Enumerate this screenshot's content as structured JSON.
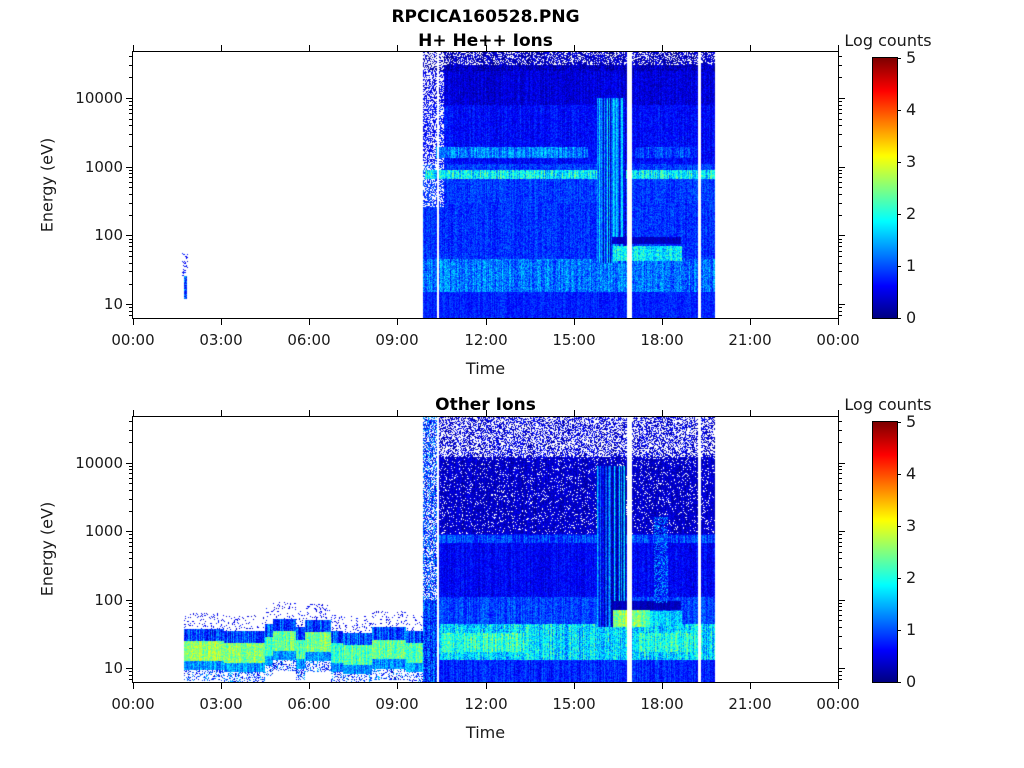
{
  "figure": {
    "title": "RPCICA160528.PNG"
  },
  "chart_data": [
    {
      "type": "heatmap",
      "title": "H+ He++ Ions",
      "xlabel": "Time",
      "ylabel": "Energy (eV)",
      "x_range_hours": [
        0,
        24
      ],
      "x_major_ticks_hours": [
        0,
        3,
        6,
        9,
        12,
        15,
        18,
        21,
        24
      ],
      "x_tick_labels": [
        "00:00",
        "03:00",
        "06:00",
        "09:00",
        "12:00",
        "15:00",
        "18:00",
        "21:00",
        "00:00"
      ],
      "y_scale": "log",
      "y_range_ev": [
        6.3,
        46500
      ],
      "y_major_ticks_ev": [
        10,
        100,
        1000,
        10000
      ],
      "y_tick_labels": [
        "10",
        "100",
        "1000",
        "10000"
      ],
      "grid": false,
      "colorbar": {
        "label": "Log counts",
        "range": [
          0,
          5
        ],
        "ticks": [
          0,
          1,
          2,
          3,
          4,
          5
        ],
        "colormap": "jet"
      },
      "features": [
        {
          "name": "early-ion-trace",
          "mode": "fill",
          "t": [
            1.72,
            1.83
          ],
          "e": [
            12,
            26
          ],
          "v": 1.1,
          "jitter": 0.6,
          "colAmp": 0.3
        },
        {
          "name": "early-ion-trace-halo",
          "mode": "speckle",
          "p": 0.25,
          "t": [
            1.68,
            1.87
          ],
          "e": [
            26,
            55
          ],
          "v": 0.6,
          "jitter": 0.3
        },
        {
          "name": "block-bottom",
          "mode": "fill",
          "t": [
            9.87,
            19.81
          ],
          "e": [
            6.3,
            15
          ],
          "v": 0.78,
          "jitter": 0.22,
          "colAmp": 0.12
        },
        {
          "name": "block-low-band",
          "mode": "fill",
          "t": [
            9.87,
            19.81
          ],
          "e": [
            15,
            45
          ],
          "v": 1.2,
          "jitter": 0.4,
          "colAmp": 0.3
        },
        {
          "name": "block-mid-low",
          "mode": "fill",
          "t": [
            9.87,
            19.81
          ],
          "e": [
            45,
            300
          ],
          "v": 0.85,
          "jitter": 0.28,
          "colAmp": 0.15
        },
        {
          "name": "block-mid",
          "mode": "fill",
          "t": [
            9.87,
            19.81
          ],
          "e": [
            300,
            1100
          ],
          "v": 0.9,
          "jitter": 0.28,
          "colAmp": 0.15
        },
        {
          "name": "block-upper-mid",
          "mode": "fill",
          "t": [
            9.87,
            19.81
          ],
          "e": [
            1100,
            8000
          ],
          "v": 0.65,
          "jitter": 0.25,
          "colAmp": 0.15
        },
        {
          "name": "block-upper",
          "mode": "fill",
          "t": [
            9.87,
            19.81
          ],
          "e": [
            8000,
            25000
          ],
          "v": 0.45,
          "jitter": 0.25,
          "colAmp": 0.15
        },
        {
          "name": "block-top",
          "mode": "fill",
          "t": [
            9.87,
            19.81
          ],
          "e": [
            25000,
            46500
          ],
          "v": 0.3,
          "jitter": 0.3,
          "colAmp": 0.15
        },
        {
          "name": "block-top-speckle",
          "mode": "speckle",
          "p": 0.3,
          "t": [
            9.87,
            19.81
          ],
          "e": [
            30000,
            46500
          ],
          "v": null
        },
        {
          "name": "block-leading-speckle",
          "mode": "speckle",
          "p": 0.45,
          "t": [
            9.87,
            10.6
          ],
          "e": [
            260,
            46500
          ],
          "v": null
        },
        {
          "name": "alpha-line",
          "mode": "fill",
          "t": [
            10.3,
            15.5
          ],
          "e": [
            1350,
            1950
          ],
          "v": 1.25,
          "jitter": 0.35,
          "colAmp": 0.35
        },
        {
          "name": "alpha-line-faint",
          "mode": "fill",
          "t": [
            17.1,
            19.2
          ],
          "e": [
            1350,
            1950
          ],
          "v": 0.95,
          "jitter": 0.3,
          "colAmp": 0.3
        },
        {
          "name": "solar-wind-proton-line",
          "mode": "fill",
          "t": [
            9.95,
            19.81
          ],
          "e": [
            660,
            900
          ],
          "v": 1.85,
          "jitter": 0.45,
          "colAmp": 0.5
        },
        {
          "name": "stripe-region",
          "mode": "fill",
          "t": [
            15.8,
            16.78
          ],
          "e": [
            40,
            10000
          ],
          "v": 1.05,
          "jitter": 0.3,
          "colAmp": 0.85
        },
        {
          "name": "absorption-line",
          "mode": "fill",
          "t": [
            16.3,
            18.65
          ],
          "e": [
            74,
            96
          ],
          "v": 0.35,
          "jitter": 0.15,
          "colAmp": 0.1
        },
        {
          "name": "heated-ion-patch",
          "mode": "fill",
          "t": [
            16.35,
            18.7
          ],
          "e": [
            42,
            70
          ],
          "v": 1.8,
          "jitter": 0.45,
          "colAmp": 0.3
        },
        {
          "name": "data-gap-1",
          "mode": "erase",
          "t": [
            10.35,
            10.42
          ],
          "e": [
            6.3,
            46500
          ]
        },
        {
          "name": "data-gap-2",
          "mode": "erase",
          "t": [
            16.8,
            17.0
          ],
          "e": [
            6.3,
            46500
          ]
        },
        {
          "name": "data-gap-3",
          "mode": "erase",
          "t": [
            19.23,
            19.33
          ],
          "e": [
            6.3,
            46500
          ]
        }
      ]
    },
    {
      "type": "heatmap",
      "title": "Other Ions",
      "xlabel": "Time",
      "ylabel": "Energy (eV)",
      "x_range_hours": [
        0,
        24
      ],
      "x_major_ticks_hours": [
        0,
        3,
        6,
        9,
        12,
        15,
        18,
        21,
        24
      ],
      "x_tick_labels": [
        "00:00",
        "03:00",
        "06:00",
        "09:00",
        "12:00",
        "15:00",
        "18:00",
        "21:00",
        "00:00"
      ],
      "y_scale": "log",
      "y_range_ev": [
        6.3,
        46500
      ],
      "y_major_ticks_ev": [
        10,
        100,
        1000,
        10000
      ],
      "y_tick_labels": [
        "10",
        "100",
        "1000",
        "10000"
      ],
      "grid": false,
      "colorbar": {
        "label": "Log counts",
        "range": [
          0,
          5
        ],
        "ticks": [
          0,
          1,
          2,
          3,
          4,
          5
        ],
        "colormap": "jet"
      },
      "features": [
        {
          "name": "cold-ion-band",
          "mode": "band",
          "segments": [
            [
              1.72,
              3.1,
              17,
              0.35
            ],
            [
              3.1,
              4.5,
              16,
              0.3
            ],
            [
              4.5,
              4.75,
              20,
              0
            ],
            [
              4.75,
              5.55,
              24,
              0.15
            ],
            [
              5.55,
              5.85,
              18,
              0
            ],
            [
              5.85,
              6.75,
              23,
              0.15
            ],
            [
              6.75,
              7.15,
              16,
              0
            ],
            [
              7.15,
              8.15,
              15,
              0
            ],
            [
              8.15,
              9.3,
              18,
              0.1
            ],
            [
              9.3,
              10.0,
              16,
              0
            ]
          ],
          "layers": [
            {
              "name": "below-dashes",
              "eMul": [
                0.38,
                0.55
              ],
              "v": 0.9,
              "jitter": 0.4,
              "colAmp": 0.5,
              "p": 0.35
            },
            {
              "name": "bottom-edge",
              "eMul": [
                0.55,
                0.75
              ],
              "v": 1.35,
              "jitter": 0.35,
              "colAmp": 0.3
            },
            {
              "name": "core",
              "eMul": [
                0.75,
                1.45
              ],
              "v": 2.25,
              "jitter": 0.4,
              "colAmp": 0.3,
              "core": true
            },
            {
              "name": "top-edge",
              "eMul": [
                1.45,
                2.2
              ],
              "v": 0.95,
              "jitter": 0.35,
              "colAmp": 0.45
            },
            {
              "name": "above-speckle",
              "eMul": [
                2.2,
                3.8
              ],
              "v": 0.55,
              "jitter": 0.25,
              "p": 0.12
            }
          ]
        },
        {
          "name": "block-bottom",
          "mode": "fill",
          "t": [
            9.87,
            19.81
          ],
          "e": [
            6.3,
            13
          ],
          "v": 0.8,
          "jitter": 0.25,
          "colAmp": 0.2
        },
        {
          "name": "block-low-band",
          "mode": "fill",
          "t": [
            9.87,
            19.81
          ],
          "e": [
            13,
            45
          ],
          "v": 1.7,
          "jitter": 0.5,
          "colAmp": 0.4
        },
        {
          "name": "low-band-bright-1",
          "mode": "fill",
          "t": [
            10.5,
            13.3
          ],
          "e": [
            17,
            33
          ],
          "v": 2.15,
          "jitter": 0.45,
          "colAmp": 0.4
        },
        {
          "name": "low-band-bright-2",
          "mode": "fill",
          "t": [
            17.1,
            19.25
          ],
          "e": [
            17,
            33
          ],
          "v": 2.0,
          "jitter": 0.45,
          "colAmp": 0.4
        },
        {
          "name": "block-mid-low",
          "mode": "fill",
          "t": [
            9.87,
            19.81
          ],
          "e": [
            45,
            110
          ],
          "v": 0.95,
          "jitter": 0.3,
          "colAmp": 0.2
        },
        {
          "name": "block-mid",
          "mode": "fill",
          "t": [
            9.87,
            19.81
          ],
          "e": [
            110,
            900
          ],
          "v": 0.6,
          "jitter": 0.25,
          "colAmp": 0.15
        },
        {
          "name": "block-upper",
          "mode": "fill",
          "t": [
            9.87,
            19.81
          ],
          "e": [
            900,
            12000
          ],
          "v": 0.35,
          "jitter": 0.22,
          "colAmp": 0.12
        },
        {
          "name": "block-upper-speckle",
          "mode": "speckle",
          "p": 0.1,
          "t": [
            9.87,
            19.81
          ],
          "e": [
            900,
            12000
          ],
          "v": null
        },
        {
          "name": "block-top",
          "mode": "fill",
          "t": [
            9.87,
            19.81
          ],
          "e": [
            12000,
            46500
          ],
          "v": 0.4,
          "jitter": 0.3,
          "colAmp": 0.15
        },
        {
          "name": "block-top-speckle",
          "mode": "speckle",
          "p": 0.5,
          "t": [
            9.87,
            19.81
          ],
          "e": [
            12000,
            46500
          ],
          "v": null
        },
        {
          "name": "proton-line-faint",
          "mode": "fill",
          "t": [
            10.0,
            19.81
          ],
          "e": [
            680,
            880
          ],
          "v": 0.95,
          "jitter": 0.3,
          "colAmp": 0.3
        },
        {
          "name": "leading-column",
          "mode": "fill",
          "t": [
            9.87,
            10.35
          ],
          "e": [
            6.3,
            46500
          ],
          "v": 0.9,
          "jitter": 0.55,
          "colAmp": 0.3
        },
        {
          "name": "leading-column-speckle",
          "mode": "speckle",
          "p": 0.35,
          "t": [
            9.87,
            10.35
          ],
          "e": [
            100,
            46500
          ],
          "v": null
        },
        {
          "name": "stripe-region",
          "mode": "fill",
          "t": [
            15.8,
            16.78
          ],
          "e": [
            40,
            9000
          ],
          "v": 0.9,
          "jitter": 0.3,
          "colAmp": 0.9
        },
        {
          "name": "absorption-line",
          "mode": "fill",
          "t": [
            16.3,
            18.65
          ],
          "e": [
            72,
            96
          ],
          "v": 0.3,
          "jitter": 0.12,
          "colAmp": 0.1
        },
        {
          "name": "heated-patch-bright",
          "mode": "fill",
          "t": [
            16.35,
            16.8
          ],
          "e": [
            40,
            70
          ],
          "v": 2.55,
          "jitter": 0.4,
          "colAmp": 0.3
        },
        {
          "name": "heated-patch-medium",
          "mode": "fill",
          "t": [
            17.0,
            17.6
          ],
          "e": [
            40,
            70
          ],
          "v": 2.4,
          "jitter": 0.4,
          "colAmp": 0.3
        },
        {
          "name": "heated-patch-dim",
          "mode": "fill",
          "t": [
            17.6,
            18.7
          ],
          "e": [
            42,
            68
          ],
          "v": 1.7,
          "jitter": 0.4,
          "colAmp": 0.3
        },
        {
          "name": "vertical-smudge",
          "mode": "speckle",
          "p": 0.55,
          "t": [
            17.75,
            18.2
          ],
          "e": [
            90,
            1600
          ],
          "v": 1.15,
          "jitter": 0.5
        },
        {
          "name": "data-gap-1",
          "mode": "erase",
          "t": [
            10.35,
            10.42
          ],
          "e": [
            6.3,
            46500
          ]
        },
        {
          "name": "data-gap-2",
          "mode": "erase",
          "t": [
            16.8,
            17.0
          ],
          "e": [
            6.3,
            46500
          ]
        },
        {
          "name": "data-gap-3",
          "mode": "erase",
          "t": [
            19.23,
            19.33
          ],
          "e": [
            6.3,
            46500
          ]
        }
      ]
    }
  ]
}
